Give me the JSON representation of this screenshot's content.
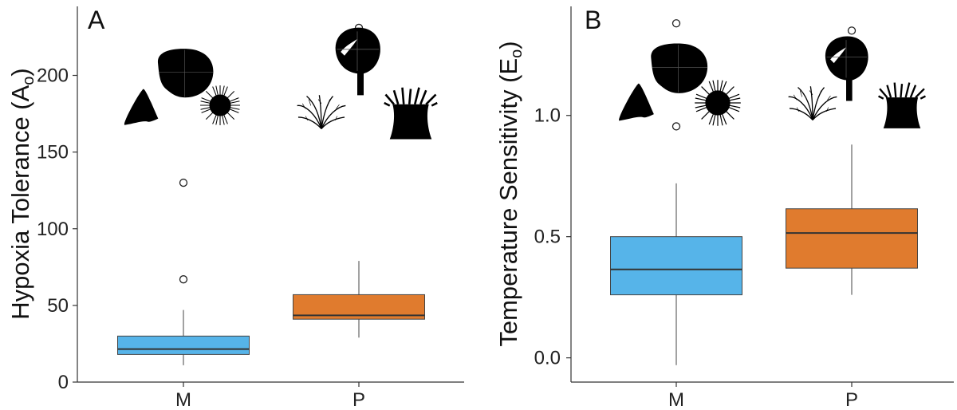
{
  "chart_data": [
    {
      "type": "box",
      "panel_label": "A",
      "ylabel": "Hypoxia Tolerance (A",
      "ylabel_subscript": "o",
      "ylabel_suffix": ")",
      "categories": [
        "M",
        "P"
      ],
      "ylim": [
        0,
        245
      ],
      "yticks": [
        0,
        50,
        100,
        150,
        200
      ],
      "ytick_labels": [
        "0",
        "50",
        "100",
        "150",
        "200"
      ],
      "grid": false,
      "boxes": [
        {
          "category": "M",
          "color": "#56B4E9",
          "whisker_low": 11,
          "q1": 18,
          "median": 21.5,
          "q3": 30,
          "whisker_high": 47,
          "outliers": [
            67,
            130
          ]
        },
        {
          "category": "P",
          "color": "#E07B2E",
          "whisker_low": 29,
          "q1": 41,
          "median": 43.5,
          "q3": 57,
          "whisker_high": 79,
          "outliers": [
            231
          ]
        }
      ],
      "icons_M": [
        "limpet-icon",
        "snail-icon",
        "sea-urchin-icon"
      ],
      "icons_P": [
        "nudibranch-icon",
        "feather-star-icon",
        "anemone-icon"
      ]
    },
    {
      "type": "box",
      "panel_label": "B",
      "ylabel": "Temperature Sensitivity (E",
      "ylabel_subscript": "o",
      "ylabel_suffix": ")",
      "categories": [
        "M",
        "P"
      ],
      "ylim": [
        -0.1,
        1.45
      ],
      "yticks": [
        0.0,
        0.5,
        1.0
      ],
      "ytick_labels": [
        "0.0",
        "0.5",
        "1.0"
      ],
      "grid": false,
      "boxes": [
        {
          "category": "M",
          "color": "#56B4E9",
          "whisker_low": -0.03,
          "q1": 0.26,
          "median": 0.365,
          "q3": 0.5,
          "whisker_high": 0.72,
          "outliers": [
            1.38,
            0.955
          ]
        },
        {
          "category": "P",
          "color": "#E07B2E",
          "whisker_low": 0.26,
          "q1": 0.37,
          "median": 0.515,
          "q3": 0.615,
          "whisker_high": 0.88,
          "outliers": [
            1.35
          ]
        }
      ],
      "icons_M": [
        "limpet-icon",
        "snail-icon",
        "sea-urchin-icon"
      ],
      "icons_P": [
        "nudibranch-icon",
        "feather-star-icon",
        "anemone-icon"
      ]
    }
  ]
}
